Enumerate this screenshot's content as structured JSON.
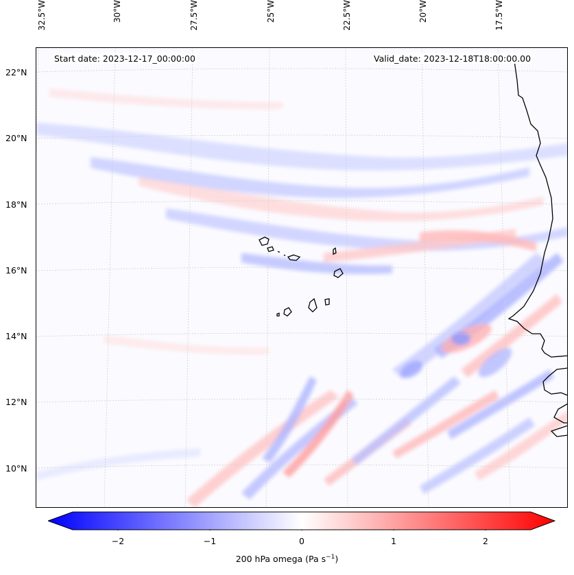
{
  "map": {
    "header": {
      "start_date": "Start date: 2023-12-17_00:00:00",
      "valid_date": "Valid_date: 2023-12-18T18:00:00.00"
    },
    "lon_ticks": [
      "32.5°W",
      "30°W",
      "27.5°W",
      "25°W",
      "22.5°W",
      "20°W",
      "17.5°W"
    ],
    "lat_ticks": [
      "22°N",
      "20°N",
      "18°N",
      "16°N",
      "14°N",
      "12°N",
      "10°N"
    ],
    "colorbar": {
      "ticks": [
        "−2",
        "−1",
        "0",
        "1",
        "2"
      ],
      "label_main": "200 hPa omega (Pa s",
      "label_sup": "−1",
      "label_end": ")",
      "colors": {
        "min": "#0000ff",
        "mid": "#ffffff",
        "max": "#ff0000"
      }
    },
    "variable": "200 hPa omega",
    "region": "Cape Verde / West Africa coast"
  }
}
